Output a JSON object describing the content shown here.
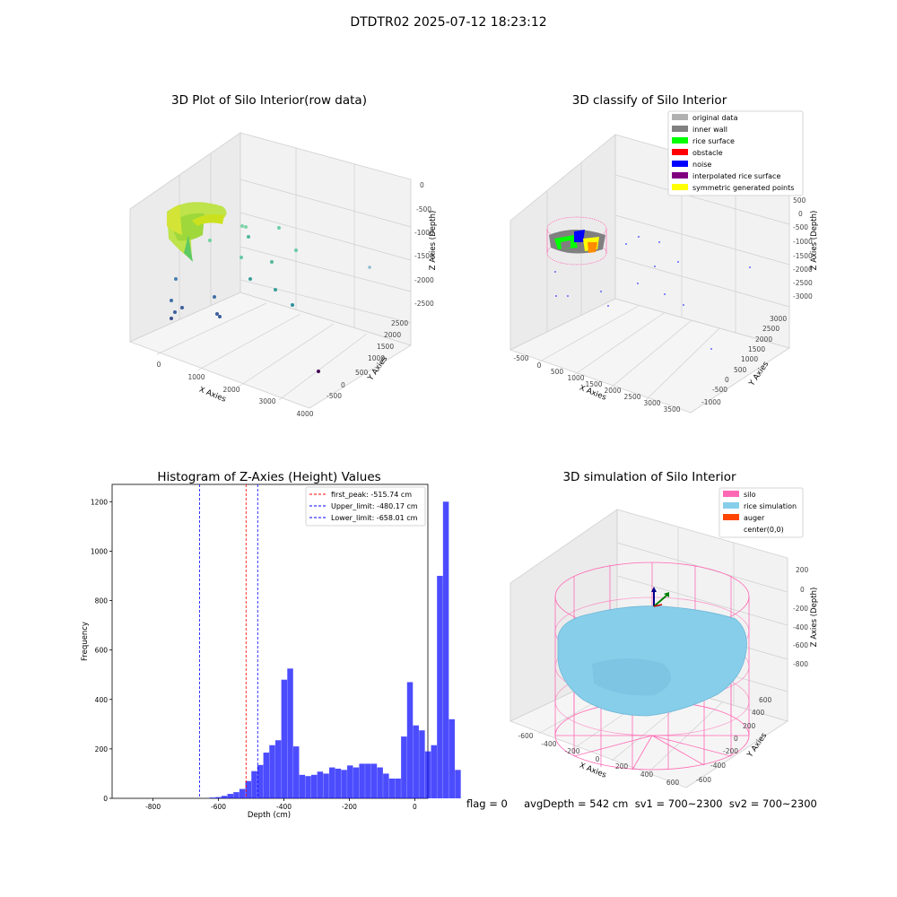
{
  "suptitle": "DTDTR02 2025-07-12 18:23:12",
  "panel1": {
    "title": "3D Plot of Silo Interior(row data)",
    "xlabel": "X Axies",
    "ylabel": "Y Axies",
    "zlabel": "Z Axies (Depth)",
    "xticks": [
      "0",
      "1000",
      "2000",
      "3000",
      "4000"
    ],
    "yticks": [
      "-500",
      "0",
      "500",
      "1000",
      "1500",
      "2000",
      "2500"
    ],
    "zticks": [
      "0",
      "-500",
      "-1000",
      "-1500",
      "-2000",
      "-2500"
    ]
  },
  "panel2": {
    "title": "3D classify of Silo Interior",
    "xlabel": "X Axies",
    "ylabel": "Y Axies",
    "zlabel": "Z Axies (Depth)",
    "xticks": [
      "-500",
      "0",
      "500",
      "1000",
      "1500",
      "2000",
      "2500",
      "3000",
      "3500"
    ],
    "yticks": [
      "-1000",
      "-500",
      "0",
      "500",
      "1000",
      "1500",
      "2000",
      "2500",
      "3000"
    ],
    "zticks": [
      "500",
      "0",
      "-500",
      "-1000",
      "-1500",
      "-2000",
      "-2500",
      "-3000"
    ],
    "legend": [
      {
        "label": "original data",
        "color": "#b0b0b0"
      },
      {
        "label": "inner wall",
        "color": "#808080"
      },
      {
        "label": "rice surface",
        "color": "#00ff00"
      },
      {
        "label": "obstacle",
        "color": "#ff0000"
      },
      {
        "label": "noise",
        "color": "#0000ff"
      },
      {
        "label": "interpolated rice surface",
        "color": "#800080"
      },
      {
        "label": "symmetric generated points",
        "color": "#ffff00"
      }
    ]
  },
  "panel4": {
    "title": "3D simulation of Silo Interior",
    "xlabel": "X Axies",
    "ylabel": "Y Axies",
    "zlabel": "Z Axies (Depth)",
    "xticks": [
      "-600",
      "-400",
      "-200",
      "0",
      "200",
      "400",
      "600"
    ],
    "yticks": [
      "-600",
      "-400",
      "-200",
      "0",
      "200",
      "400",
      "600"
    ],
    "zticks": [
      "200",
      "0",
      "-200",
      "-400",
      "-600",
      "-800"
    ],
    "legend": [
      {
        "label": "silo",
        "color": "#ff69b4"
      },
      {
        "label": "rice simulation",
        "color": "#87ceeb"
      },
      {
        "label": "auger",
        "color": "#ff4500"
      },
      {
        "label": "center(0,0)",
        "color": ""
      }
    ]
  },
  "chart_data": {
    "type": "bar",
    "title": "Histogram of Z-Axies (Height) Values",
    "xlabel": "Depth (cm)",
    "ylabel": "Frequency",
    "xlim": [
      -925,
      40
    ],
    "ylim": [
      0,
      1270
    ],
    "xticks": [
      -800,
      -600,
      -400,
      -200,
      0
    ],
    "yticks": [
      0,
      200,
      400,
      600,
      800,
      1000,
      1200
    ],
    "bin_width": 18.3,
    "bin_start": -902,
    "values": [
      0,
      0,
      0,
      0,
      0,
      0,
      0,
      0,
      0,
      0,
      0,
      0,
      0,
      0,
      0,
      3,
      5,
      10,
      18,
      25,
      38,
      70,
      110,
      135,
      185,
      215,
      235,
      480,
      525,
      210,
      95,
      90,
      95,
      108,
      100,
      125,
      120,
      115,
      133,
      125,
      140,
      140,
      140,
      125,
      100,
      80,
      80,
      250,
      470,
      295,
      275,
      190,
      215,
      900,
      1200,
      320,
      115
    ],
    "lines": [
      {
        "label": "first_peak: -515.74 cm",
        "x": -515.74,
        "color": "#ff0000"
      },
      {
        "label": "Upper_limit: -480.17 cm",
        "x": -480.17,
        "color": "#0000ff"
      },
      {
        "label": "Lower_limit: -658.01 cm",
        "x": -658.01,
        "color": "#0000ff"
      }
    ]
  },
  "footer": "flag = 0     avgDepth = 542 cm  sv1 = 700~2300  sv2 = 700~2300"
}
